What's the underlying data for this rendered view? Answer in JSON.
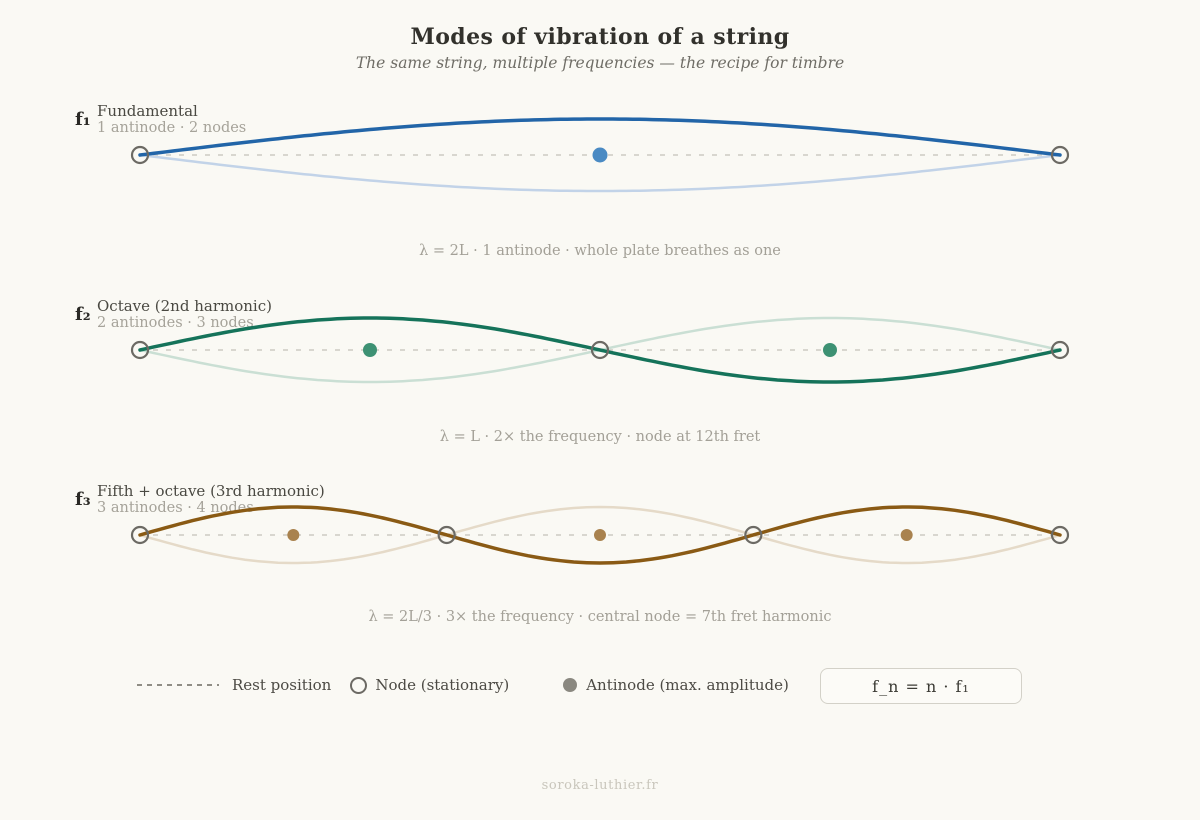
{
  "header": {
    "title": "Modes of vibration of a string",
    "subtitle": "The same string, multiple frequencies — the recipe for timbre"
  },
  "modes": [
    {
      "symbol": "f₁",
      "name": "Fundamental",
      "detail": "1 antinode · 2 nodes",
      "caption": "λ = 2L · 1 antinode · whole plate breathes as one",
      "harmonic": 1,
      "antinodes": 1,
      "nodes": 2,
      "wavelength": "2L",
      "amplitude": 36,
      "dot_radius": 7.5,
      "colors": {
        "main": "#2265a8",
        "ghost": "#c2d3e8",
        "dot": "#4a8ac3"
      }
    },
    {
      "symbol": "f₂",
      "name": "Octave (2nd harmonic)",
      "detail": "2 antinodes · 3 nodes",
      "caption": "λ = L · 2× the frequency · node at 12th fret",
      "harmonic": 2,
      "antinodes": 2,
      "nodes": 3,
      "wavelength": "L",
      "amplitude": 32,
      "dot_radius": 7,
      "colors": {
        "main": "#15735a",
        "ghost": "#cadfd4",
        "dot": "#3d9173"
      }
    },
    {
      "symbol": "f₃",
      "name": "Fifth + octave (3rd harmonic)",
      "detail": "3 antinodes · 4 nodes",
      "caption": "λ = 2L/3 · 3× the frequency · central node = 7th fret harmonic",
      "harmonic": 3,
      "antinodes": 3,
      "nodes": 4,
      "wavelength": "2L/3",
      "amplitude": 28,
      "dot_radius": 6,
      "colors": {
        "main": "#8a5a14",
        "ghost": "#e5dac8",
        "dot": "#a9824e"
      }
    }
  ],
  "legend": {
    "rest": "Rest position",
    "node": "Node (stationary)",
    "antinode": "Antinode (max. amplitude)"
  },
  "formula": {
    "text": "f_n = n · f₁"
  },
  "footer": {
    "text": "soroka-luthier.fr"
  },
  "style": {
    "background": "#faf9f4",
    "rest_line": "#d8d6cf",
    "node_stroke": "#6c6a64",
    "legend_antinode_fill": "#8a8880"
  }
}
